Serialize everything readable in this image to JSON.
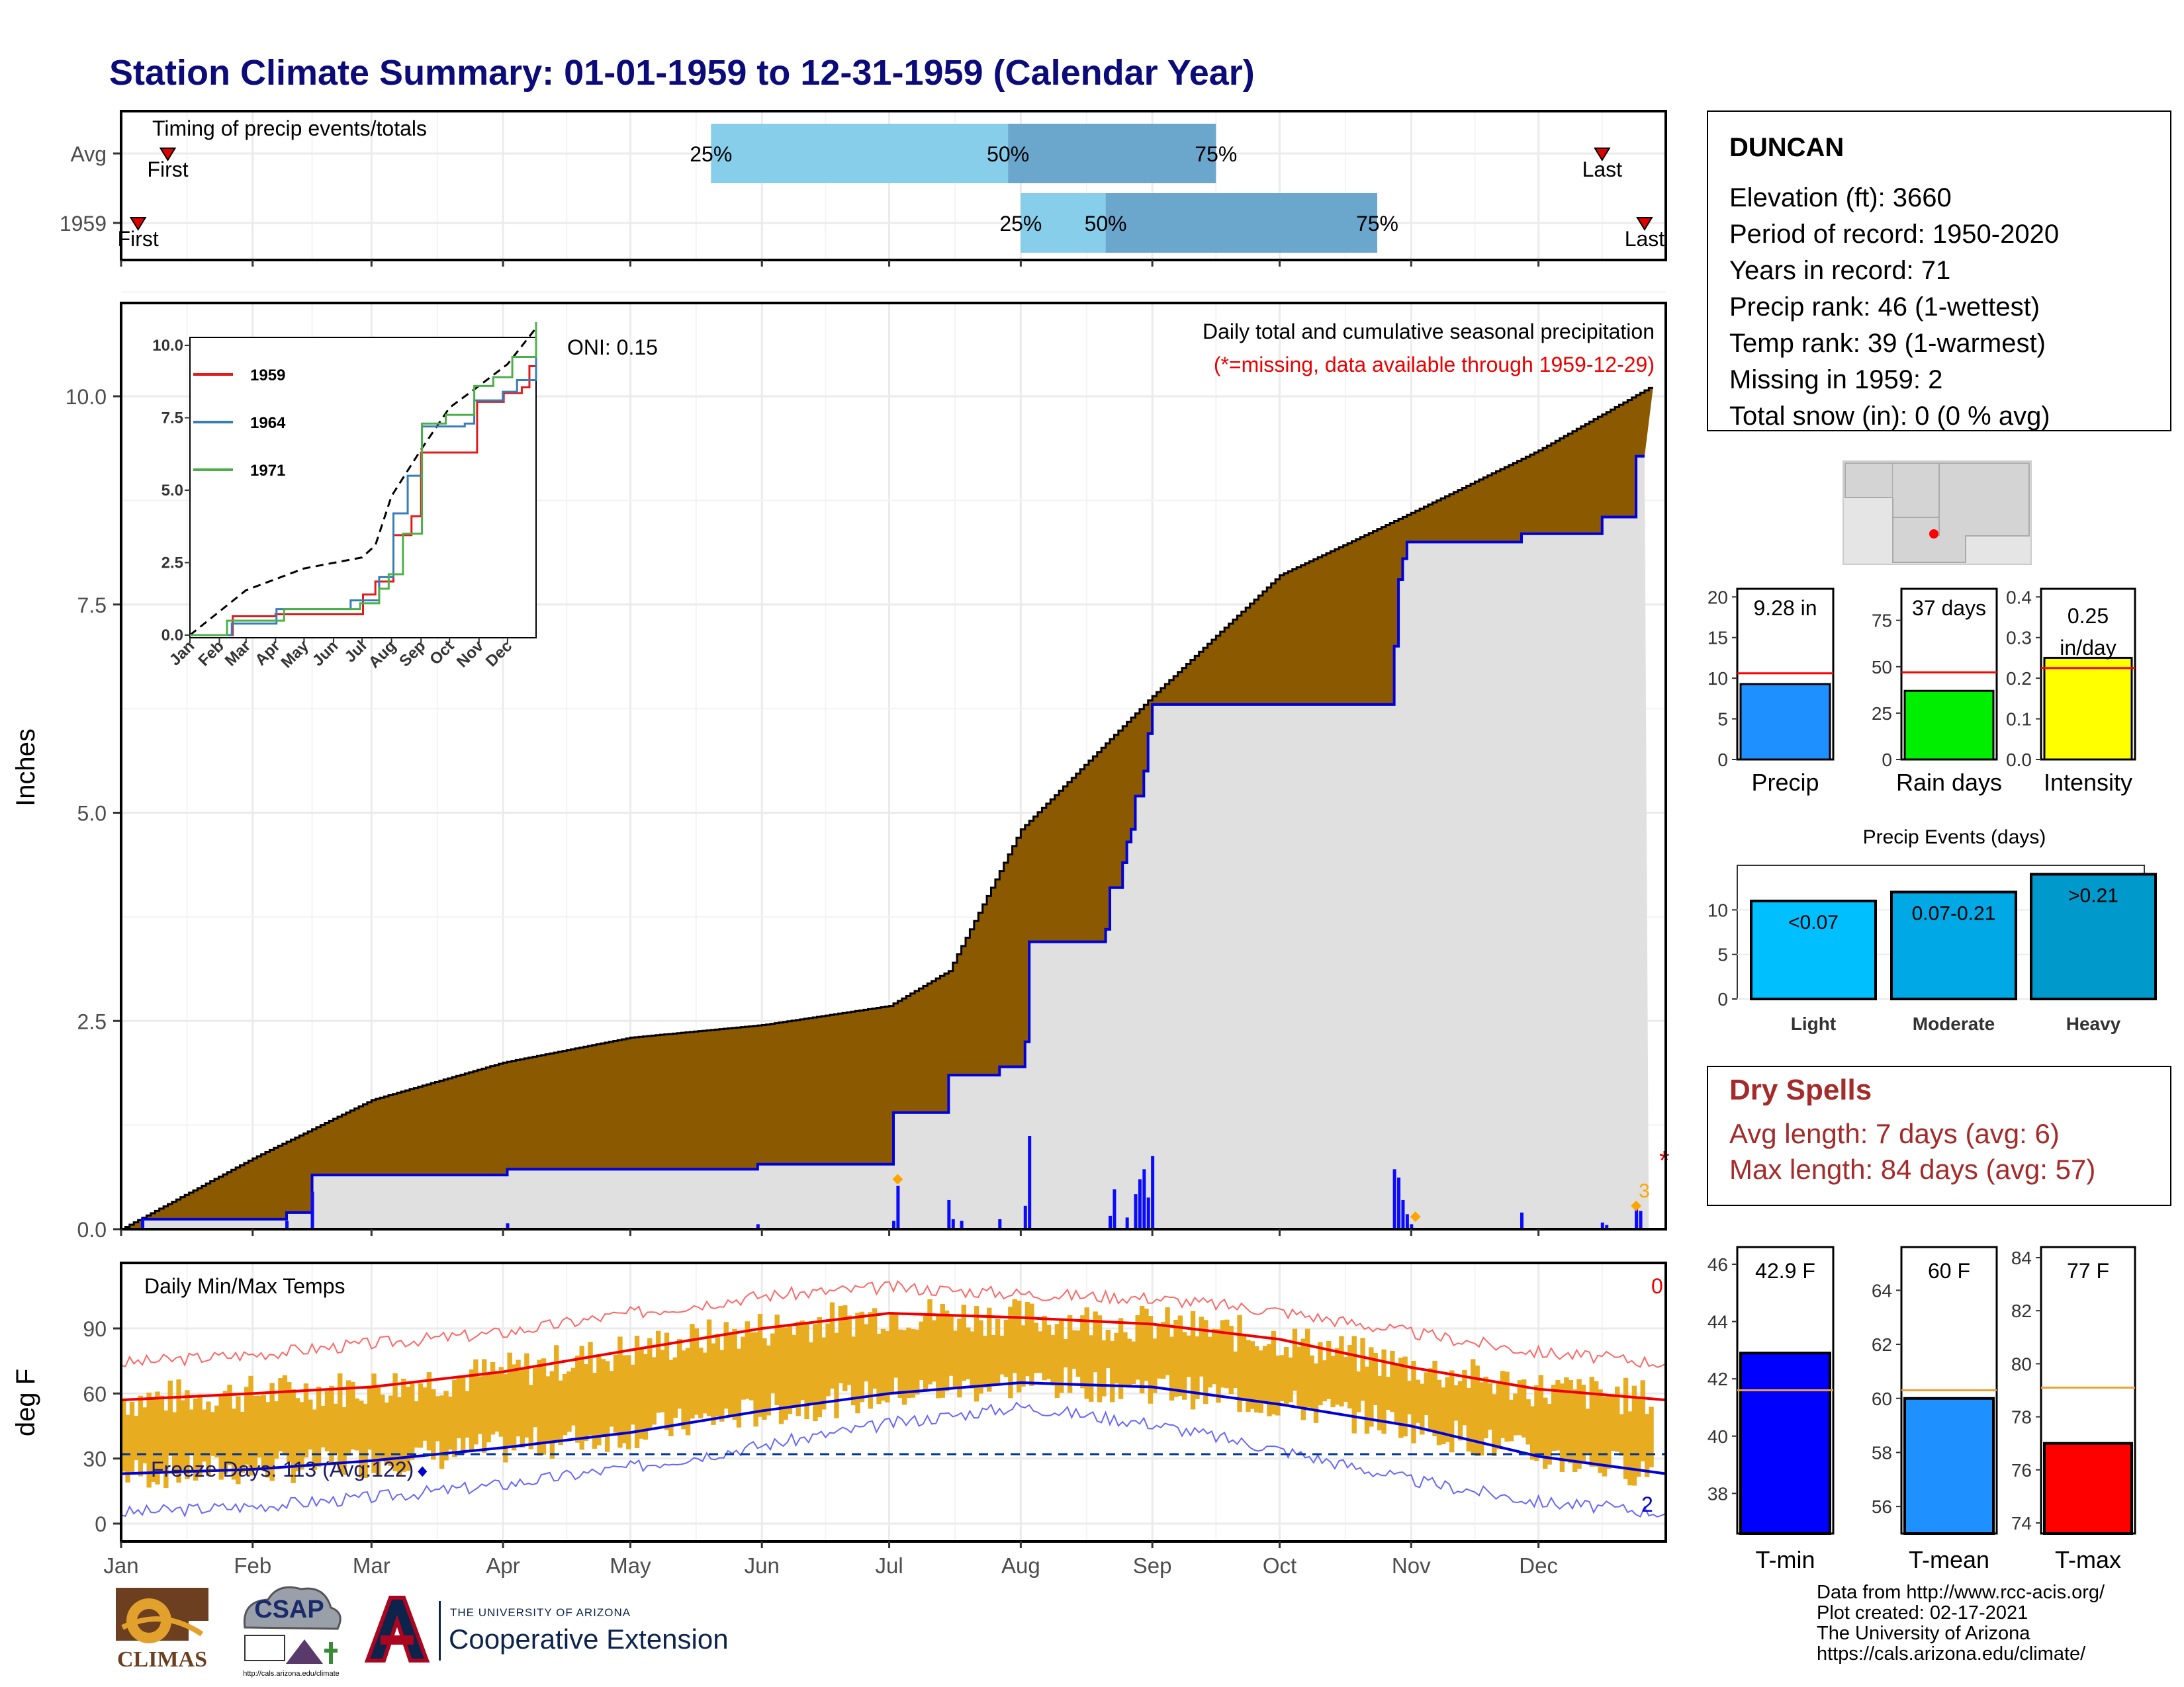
{
  "title": "Station Climate Summary: 01-01-1959 to 12-31-1959 (Calendar Year)",
  "timing": {
    "label": "Timing of precip events/totals",
    "rows": [
      {
        "name": "Avg",
        "first_label": "First",
        "last_label": "Last",
        "first_day": 12,
        "last_day": 350,
        "p25": 140,
        "p50": 210,
        "p75": 259,
        "p25_label": "25%",
        "p50_label": "50%",
        "p75_label": "75%"
      },
      {
        "name": "1959",
        "first_label": "First",
        "last_label": "Last",
        "first_day": 5,
        "last_day": 360,
        "p25": 213,
        "p50": 233,
        "p75": 297,
        "p25_label": "25%",
        "p50_label": "50%",
        "p75_label": "75%"
      }
    ]
  },
  "precip_panel": {
    "ylabel": "Inches",
    "yticks": [
      "0.0",
      "2.5",
      "5.0",
      "7.5",
      "10.0"
    ],
    "caption": "Daily total and cumulative seasonal precipitation",
    "missing_note": "(*=missing, data available through 1959-12-29)",
    "oni": "ONI: 0.15",
    "orange_count": "3",
    "missing_marker": "*"
  },
  "inset": {
    "yticks": [
      "0.0",
      "2.5",
      "5.0",
      "7.5",
      "10.0"
    ],
    "months": [
      "Jan",
      "Feb",
      "Mar",
      "Apr",
      "May",
      "Jun",
      "Jul",
      "Aug",
      "Sep",
      "Oct",
      "Nov",
      "Dec"
    ],
    "legend": [
      {
        "name": "1959",
        "color": "#e41a1c"
      },
      {
        "name": "1964",
        "color": "#377eb8"
      },
      {
        "name": "1971",
        "color": "#4daf4a"
      }
    ]
  },
  "temp_panel": {
    "ylabel": "deg F",
    "yticks": [
      "0",
      "30",
      "60",
      "90"
    ],
    "label": "Daily Min/Max Temps",
    "freeze": "Freeze Days: 113 (Avg:122)",
    "hot_count": "0",
    "cold_count": "2"
  },
  "months": [
    "Jan",
    "Feb",
    "Mar",
    "Apr",
    "May",
    "Jun",
    "Jul",
    "Aug",
    "Sep",
    "Oct",
    "Nov",
    "Dec"
  ],
  "station": {
    "name": "DUNCAN",
    "lines": [
      "Elevation (ft): 3660",
      "Period of record: 1950-2020",
      "Years in record: 71",
      "Precip rank: 46 (1-wettest)",
      "Temp rank: 39 (1-warmest)",
      "Missing in 1959: 2",
      "Total snow (in): 0 (0 % avg)"
    ]
  },
  "mini_bars": [
    {
      "label": "Precip",
      "value_label": "9.28 in",
      "value": 9.28,
      "avg": 10.6,
      "ymax": 21,
      "ticks": [
        "0",
        "5",
        "10",
        "15",
        "20"
      ],
      "tick_vals": [
        0,
        5,
        10,
        15,
        20
      ],
      "color": "#1e90ff"
    },
    {
      "label": "Rain days",
      "value_label": "37 days",
      "value": 37,
      "avg": 47,
      "ymax": 92,
      "ticks": [
        "0",
        "25",
        "50",
        "75"
      ],
      "tick_vals": [
        0,
        25,
        50,
        75
      ],
      "color": "#00ee00"
    },
    {
      "label": "Intensity",
      "value_label": "0.25 in/day",
      "value_label_1": "0.25",
      "value_label_2": "in/day",
      "value": 0.25,
      "avg": 0.225,
      "ymax": 0.42,
      "ticks": [
        "0.0",
        "0.1",
        "0.2",
        "0.3",
        "0.4"
      ],
      "tick_vals": [
        0,
        0.1,
        0.2,
        0.3,
        0.4
      ],
      "color": "#ffff00"
    }
  ],
  "precip_events": {
    "title": "Precip Events (days)",
    "yticks": [
      "0",
      "5",
      "10"
    ],
    "bars": [
      {
        "label": "Light",
        "value_label": "<0.07",
        "value": 11,
        "color": "#00bfff"
      },
      {
        "label": "Moderate",
        "value_label": "0.07-0.21",
        "value": 12,
        "color": "#00a9e6"
      },
      {
        "label": "Heavy",
        "value_label": ">0.21",
        "value": 14,
        "color": "#0099cc"
      }
    ]
  },
  "dry_spells": {
    "title": "Dry Spells",
    "avg_length": "Avg length: 7 days (avg: 6)",
    "max_length": "Max length: 84 days (avg: 57)"
  },
  "temp_bars": [
    {
      "label": "T-min",
      "value_label": "42.9 F",
      "value": 42.9,
      "avg": 41.6,
      "ymin": 36.6,
      "ymax": 46.6,
      "ticks": [
        "38",
        "40",
        "42",
        "44",
        "46"
      ],
      "tick_vals": [
        38,
        40,
        42,
        44,
        46
      ],
      "color": "#0000ff"
    },
    {
      "label": "T-mean",
      "value_label": "60 F",
      "value": 60,
      "avg": 60.3,
      "ymin": 55.0,
      "ymax": 65.6,
      "ticks": [
        "56",
        "58",
        "60",
        "62",
        "64"
      ],
      "tick_vals": [
        56,
        58,
        60,
        62,
        64
      ],
      "color": "#1e90ff"
    },
    {
      "label": "T-max",
      "value_label": "77 F",
      "value": 77,
      "avg": 79.1,
      "ymin": 73.6,
      "ymax": 84.4,
      "ticks": [
        "74",
        "76",
        "78",
        "80",
        "82",
        "84"
      ],
      "tick_vals": [
        74,
        76,
        78,
        80,
        82,
        84
      ],
      "color": "#ff0000"
    }
  ],
  "footer": [
    "Data from http://www.rcc-acis.org/",
    "Plot created: 02-17-2021",
    "The University of Arizona",
    "https://cals.arizona.edu/climate/"
  ],
  "logos": {
    "climas": "CLIMAS",
    "csap": "CSAP",
    "csap_url": "http://cals.arizona.edu/climate",
    "ua_small": "THE UNIVERSITY OF ARIZONA",
    "coop": "Cooperative Extension"
  },
  "chart_data": [
    {
      "type": "area",
      "title": "Daily total and cumulative seasonal precipitation",
      "ylabel": "Inches",
      "ylim": [
        0,
        11
      ],
      "x_unit": "day of year",
      "series": [
        {
          "name": "Average cumulative",
          "x": [
            1,
            32,
            60,
            91,
            121,
            152,
            182,
            196,
            213,
            244,
            274,
            305,
            335,
            361
          ],
          "y": [
            0,
            0.85,
            1.55,
            2.0,
            2.3,
            2.45,
            2.68,
            3.1,
            4.8,
            6.4,
            7.85,
            8.6,
            9.35,
            10.1
          ]
        },
        {
          "name": "1959 cumulative",
          "x": [
            1,
            6,
            39,
            40,
            45,
            46,
            91,
            92,
            150,
            151,
            182,
            183,
            195,
            196,
            207,
            208,
            213,
            214,
            215,
            216,
            233,
            234,
            236,
            237,
            238,
            239,
            240,
            242,
            243,
            244,
            300,
            301,
            302,
            303,
            304,
            330,
            331,
            349,
            350,
            357,
            358,
            360
          ],
          "y": [
            0,
            0.12,
            0.12,
            0.2,
            0.2,
            0.65,
            0.65,
            0.72,
            0.72,
            0.78,
            0.78,
            1.4,
            1.4,
            1.85,
            1.85,
            1.95,
            1.95,
            2.25,
            3.45,
            3.45,
            3.6,
            4.1,
            4.1,
            4.4,
            4.65,
            4.8,
            5.2,
            5.5,
            5.95,
            6.3,
            6.3,
            7.0,
            7.8,
            8.05,
            8.25,
            8.25,
            8.35,
            8.35,
            8.55,
            8.55,
            9.28,
            9.28
          ]
        }
      ],
      "daily": [
        {
          "day": 6,
          "value": 0.12
        },
        {
          "day": 40,
          "value": 0.1
        },
        {
          "day": 46,
          "value": 0.45
        },
        {
          "day": 92,
          "value": 0.07
        },
        {
          "day": 151,
          "value": 0.06
        },
        {
          "day": 183,
          "value": 0.1
        },
        {
          "day": 184,
          "value": 0.52
        },
        {
          "day": 196,
          "value": 0.35
        },
        {
          "day": 197,
          "value": 0.12
        },
        {
          "day": 199,
          "value": 0.1
        },
        {
          "day": 208,
          "value": 0.12
        },
        {
          "day": 214,
          "value": 0.28
        },
        {
          "day": 215,
          "value": 1.12
        },
        {
          "day": 234,
          "value": 0.16
        },
        {
          "day": 235,
          "value": 0.48
        },
        {
          "day": 238,
          "value": 0.14
        },
        {
          "day": 240,
          "value": 0.42
        },
        {
          "day": 241,
          "value": 0.6
        },
        {
          "day": 242,
          "value": 0.72
        },
        {
          "day": 243,
          "value": 0.38
        },
        {
          "day": 244,
          "value": 0.88
        },
        {
          "day": 301,
          "value": 0.72
        },
        {
          "day": 302,
          "value": 0.62
        },
        {
          "day": 303,
          "value": 0.35
        },
        {
          "day": 304,
          "value": 0.18
        },
        {
          "day": 305,
          "value": 0.06
        },
        {
          "day": 331,
          "value": 0.2
        },
        {
          "day": 350,
          "value": 0.08
        },
        {
          "day": 351,
          "value": 0.05
        },
        {
          "day": 358,
          "value": 0.3
        },
        {
          "day": 359,
          "value": 0.22
        }
      ]
    },
    {
      "type": "line",
      "title": "",
      "ylim": [
        0,
        10.5
      ],
      "series": [
        {
          "name": "Average",
          "x": [
            1,
            60,
            121,
            182,
            196,
            213,
            244,
            274,
            305,
            335,
            365
          ],
          "y": [
            0,
            1.55,
            2.3,
            2.68,
            3.1,
            4.8,
            6.4,
            7.85,
            8.6,
            9.35,
            10.6
          ]
        },
        {
          "name": "1959",
          "x": [
            1,
            46,
            91,
            183,
            196,
            215,
            234,
            244,
            300,
            303,
            331,
            350,
            358,
            365
          ],
          "y": [
            0,
            0.65,
            0.72,
            1.4,
            1.85,
            3.45,
            4.1,
            6.3,
            6.3,
            8.05,
            8.35,
            8.55,
            9.28,
            9.3
          ]
        },
        {
          "name": "1964",
          "x": [
            1,
            45,
            92,
            170,
            200,
            215,
            230,
            245,
            290,
            300,
            330,
            345,
            365
          ],
          "y": [
            0,
            0.4,
            0.9,
            1.2,
            2.0,
            4.2,
            5.5,
            7.2,
            7.3,
            8.1,
            8.4,
            8.8,
            10.2
          ]
        },
        {
          "name": "1971",
          "x": [
            1,
            40,
            100,
            180,
            200,
            210,
            225,
            245,
            270,
            300,
            320,
            340,
            365
          ],
          "y": [
            0,
            0.5,
            0.9,
            1.1,
            1.6,
            2.1,
            3.5,
            7.3,
            7.6,
            8.6,
            8.9,
            9.6,
            10.8
          ]
        }
      ]
    },
    {
      "type": "line",
      "title": "Daily Min/Max Temps",
      "ylabel": "deg F",
      "ylim": [
        -5,
        115
      ],
      "series": [
        {
          "name": "Average max",
          "x": [
            1,
            32,
            60,
            91,
            121,
            152,
            182,
            213,
            244,
            274,
            305,
            335,
            365
          ],
          "y": [
            57,
            60,
            63,
            70,
            80,
            90,
            97,
            95,
            92,
            85,
            72,
            62,
            57
          ]
        },
        {
          "name": "Average min",
          "x": [
            1,
            32,
            60,
            91,
            121,
            152,
            182,
            213,
            244,
            274,
            305,
            335,
            365
          ],
          "y": [
            23,
            25,
            29,
            35,
            42,
            52,
            60,
            65,
            63,
            55,
            45,
            31,
            23
          ]
        },
        {
          "name": "Record max",
          "x": [
            1,
            32,
            60,
            91,
            121,
            152,
            182,
            213,
            244,
            274,
            305,
            335,
            365
          ],
          "y": [
            74,
            78,
            83,
            88,
            97,
            105,
            109,
            106,
            104,
            98,
            88,
            79,
            74
          ]
        },
        {
          "name": "Record min",
          "x": [
            1,
            32,
            60,
            91,
            121,
            152,
            182,
            213,
            244,
            274,
            305,
            335,
            365
          ],
          "y": [
            5,
            8,
            12,
            18,
            26,
            36,
            46,
            54,
            46,
            34,
            20,
            10,
            5
          ]
        }
      ]
    },
    {
      "type": "bar",
      "title": "Precip Events (days)",
      "categories": [
        "Light",
        "Moderate",
        "Heavy"
      ],
      "values": [
        11,
        12,
        14
      ]
    }
  ]
}
